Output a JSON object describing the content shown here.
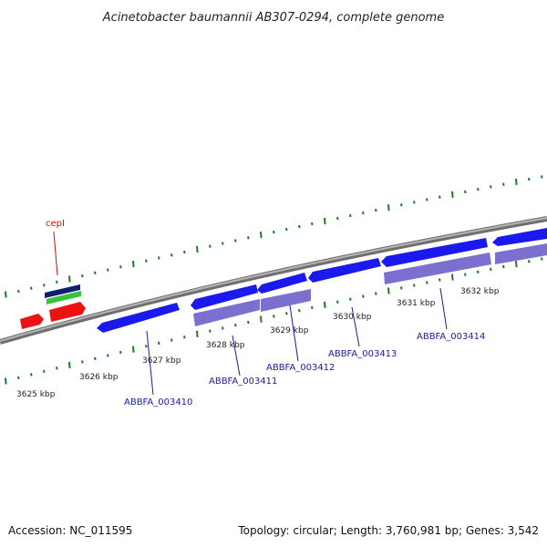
{
  "title": "Acinetobacter baumannii AB307-0294, complete genome",
  "footer": {
    "accession": "Accession: NC_011595",
    "summary": "Topology: circular; Length: 3,760,981 bp; Genes: 3,542"
  },
  "colors": {
    "backbone": "#8a8a8a",
    "tick_green": "#1e7a1e",
    "gene_blue": "#1a1aee",
    "gene_lavender": "#7b6fd0",
    "gene_red": "#ee1111",
    "label_blue": "#1a1aa0",
    "label_red": "#cc1111",
    "feature_navy": "#0d1f6e",
    "feature_green": "#3dbf3d"
  },
  "scale_labels": [
    "3625 kbp",
    "3626 kbp",
    "3627 kbp",
    "3628 kbp",
    "3629 kbp",
    "3630 kbp",
    "3631 kbp",
    "3632 kbp"
  ],
  "gene_labels": [
    "ABBFA_003410",
    "ABBFA_003411",
    "ABBFA_003412",
    "ABBFA_003413",
    "ABBFA_003414"
  ],
  "red_gene_label": "cepI"
}
